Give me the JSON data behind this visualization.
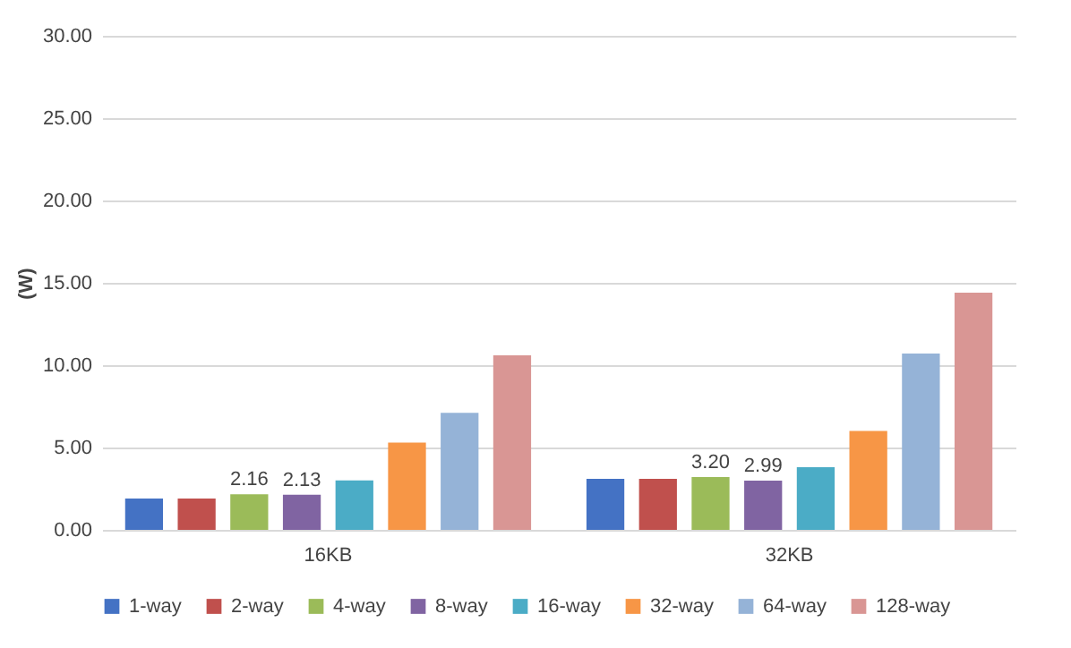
{
  "chart_data": {
    "type": "bar",
    "ylabel": "(W)",
    "categories": [
      "16KB",
      "32KB"
    ],
    "series": [
      {
        "name": "1-way",
        "color": "#4472c4",
        "values": [
          1.9,
          3.1
        ]
      },
      {
        "name": "2-way",
        "color": "#c0504d",
        "values": [
          1.9,
          3.1
        ]
      },
      {
        "name": "4-way",
        "color": "#9bbb59",
        "values": [
          2.16,
          3.2
        ],
        "value_labels": [
          "2.16",
          "3.20"
        ]
      },
      {
        "name": "8-way",
        "color": "#8064a2",
        "values": [
          2.13,
          2.99
        ],
        "value_labels": [
          "2.13",
          "2.99"
        ]
      },
      {
        "name": "16-way",
        "color": "#4bacc6",
        "values": [
          3.0,
          3.8
        ]
      },
      {
        "name": "32-way",
        "color": "#f79646",
        "values": [
          5.3,
          6.0
        ]
      },
      {
        "name": "64-way",
        "color": "#95b3d7",
        "values": [
          7.1,
          10.7
        ]
      },
      {
        "name": "128-way",
        "color": "#d99694",
        "values": [
          10.6,
          14.4
        ]
      }
    ],
    "ylim": [
      0,
      30
    ],
    "yticks": [
      {
        "value": 0,
        "label": "0.00"
      },
      {
        "value": 5,
        "label": "5.00"
      },
      {
        "value": 10,
        "label": "10.00"
      },
      {
        "value": 15,
        "label": "15.00"
      },
      {
        "value": 20,
        "label": "20.00"
      },
      {
        "value": 25,
        "label": "25.00"
      },
      {
        "value": 30,
        "label": "30.00"
      }
    ],
    "grid": "y",
    "legend": "bottom"
  }
}
